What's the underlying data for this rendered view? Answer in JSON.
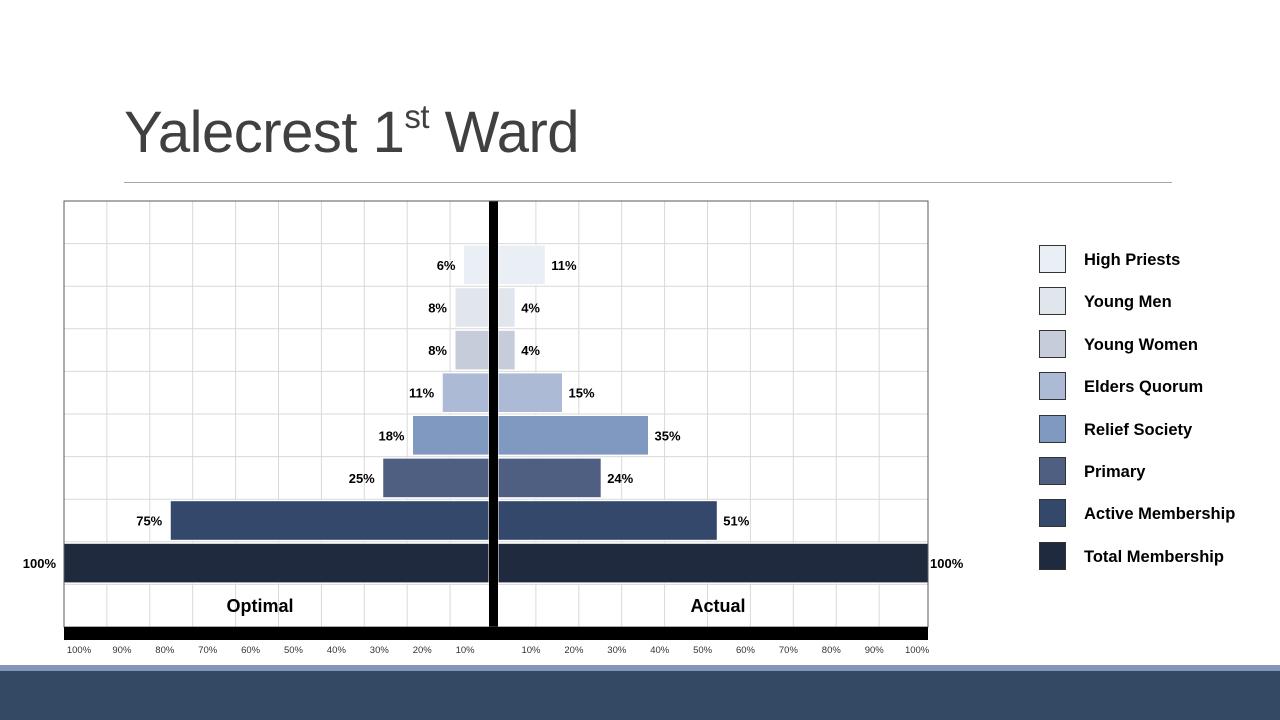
{
  "title": {
    "main": "Yalecrest 1",
    "sup": "st",
    "rest": " Ward"
  },
  "colors": {
    "background": "#ffffff",
    "title": "#404040",
    "footer_band": "#344964",
    "footer_accent": "#8395b8"
  },
  "chart_data": {
    "type": "bar",
    "orientation": "horizontal",
    "style": "population-pyramid",
    "categories": [
      "High Priests",
      "Young Men",
      "Young Women",
      "Elders Quorum",
      "Relief Society",
      "Primary",
      "Active Membership",
      "Total Membership"
    ],
    "colors": [
      "#eaeff5",
      "#e1e5ec",
      "#c7ccdb",
      "#adbad6",
      "#7f99c0",
      "#4f5f82",
      "#33486a",
      "#1f2a3f"
    ],
    "series": [
      {
        "name": "Optimal",
        "values": [
          6,
          8,
          8,
          11,
          18,
          25,
          75,
          100
        ],
        "labels": [
          "6%",
          "8%",
          "8%",
          "11%",
          "18%",
          "25%",
          "75%",
          "100%"
        ]
      },
      {
        "name": "Actual",
        "values": [
          11,
          4,
          4,
          15,
          35,
          24,
          51,
          100
        ],
        "labels": [
          "11%",
          "4%",
          "4%",
          "15%",
          "35%",
          "24%",
          "51%",
          "100%"
        ]
      }
    ],
    "left_ticks": [
      "100%",
      "90%",
      "80%",
      "70%",
      "60%",
      "50%",
      "40%",
      "30%",
      "20%",
      "10%"
    ],
    "right_ticks": [
      "10%",
      "20%",
      "30%",
      "40%",
      "50%",
      "60%",
      "70%",
      "80%",
      "90%",
      "100%"
    ],
    "xlim": [
      0,
      100
    ],
    "grid": true,
    "legend": "right"
  }
}
